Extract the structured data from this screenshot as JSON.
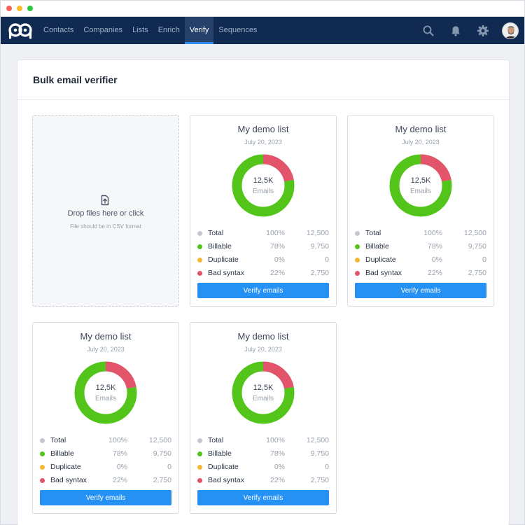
{
  "nav": {
    "items": [
      {
        "label": "Contacts",
        "active": false
      },
      {
        "label": "Companies",
        "active": false
      },
      {
        "label": "Lists",
        "active": false
      },
      {
        "label": "Enrich",
        "active": false
      },
      {
        "label": "Verify",
        "active": true
      },
      {
        "label": "Sequences",
        "active": false
      }
    ],
    "icons": [
      "search-icon",
      "bell-icon",
      "gear-icon"
    ]
  },
  "page": {
    "title": "Bulk email verifier"
  },
  "dropzone": {
    "text": "Drop files here or click",
    "hint": "File should be in CSV format",
    "icon": "upload-icon"
  },
  "colors": {
    "nav_bg": "#102a52",
    "accent": "#2491f3",
    "billable": "#52c41a",
    "bad_syntax": "#e2546a",
    "duplicate": "#f5b82e",
    "total": "#c3c8d0"
  },
  "cards": [
    {
      "title": "My demo list",
      "date": "July 20, 2023",
      "donut_value": "12,5K",
      "donut_label": "Emails",
      "rows": [
        {
          "label": "Total",
          "pct": "100%",
          "count": "12,500",
          "color": "#c3c8d0"
        },
        {
          "label": "Billable",
          "pct": "78%",
          "count": "9,750",
          "color": "#52c41a"
        },
        {
          "label": "Duplicate",
          "pct": "0%",
          "count": "0",
          "color": "#f5b82e"
        },
        {
          "label": "Bad syntax",
          "pct": "22%",
          "count": "2,750",
          "color": "#e2546a"
        }
      ],
      "button": "Verify emails"
    },
    {
      "title": "My demo list",
      "date": "July 20, 2023",
      "donut_value": "12,5K",
      "donut_label": "Emails",
      "rows": [
        {
          "label": "Total",
          "pct": "100%",
          "count": "12,500",
          "color": "#c3c8d0"
        },
        {
          "label": "Billable",
          "pct": "78%",
          "count": "9,750",
          "color": "#52c41a"
        },
        {
          "label": "Duplicate",
          "pct": "0%",
          "count": "0",
          "color": "#f5b82e"
        },
        {
          "label": "Bad syntax",
          "pct": "22%",
          "count": "2,750",
          "color": "#e2546a"
        }
      ],
      "button": "Verify emails"
    },
    {
      "title": "My demo list",
      "date": "July 20, 2023",
      "donut_value": "12,5K",
      "donut_label": "Emails",
      "rows": [
        {
          "label": "Total",
          "pct": "100%",
          "count": "12,500",
          "color": "#c3c8d0"
        },
        {
          "label": "Billable",
          "pct": "78%",
          "count": "9,750",
          "color": "#52c41a"
        },
        {
          "label": "Duplicate",
          "pct": "0%",
          "count": "0",
          "color": "#f5b82e"
        },
        {
          "label": "Bad syntax",
          "pct": "22%",
          "count": "2,750",
          "color": "#e2546a"
        }
      ],
      "button": "Verify emails"
    },
    {
      "title": "My demo list",
      "date": "July 20, 2023",
      "donut_value": "12,5K",
      "donut_label": "Emails",
      "rows": [
        {
          "label": "Total",
          "pct": "100%",
          "count": "12,500",
          "color": "#c3c8d0"
        },
        {
          "label": "Billable",
          "pct": "78%",
          "count": "9,750",
          "color": "#52c41a"
        },
        {
          "label": "Duplicate",
          "pct": "0%",
          "count": "0",
          "color": "#f5b82e"
        },
        {
          "label": "Bad syntax",
          "pct": "22%",
          "count": "2,750",
          "color": "#e2546a"
        }
      ],
      "button": "Verify emails"
    }
  ]
}
